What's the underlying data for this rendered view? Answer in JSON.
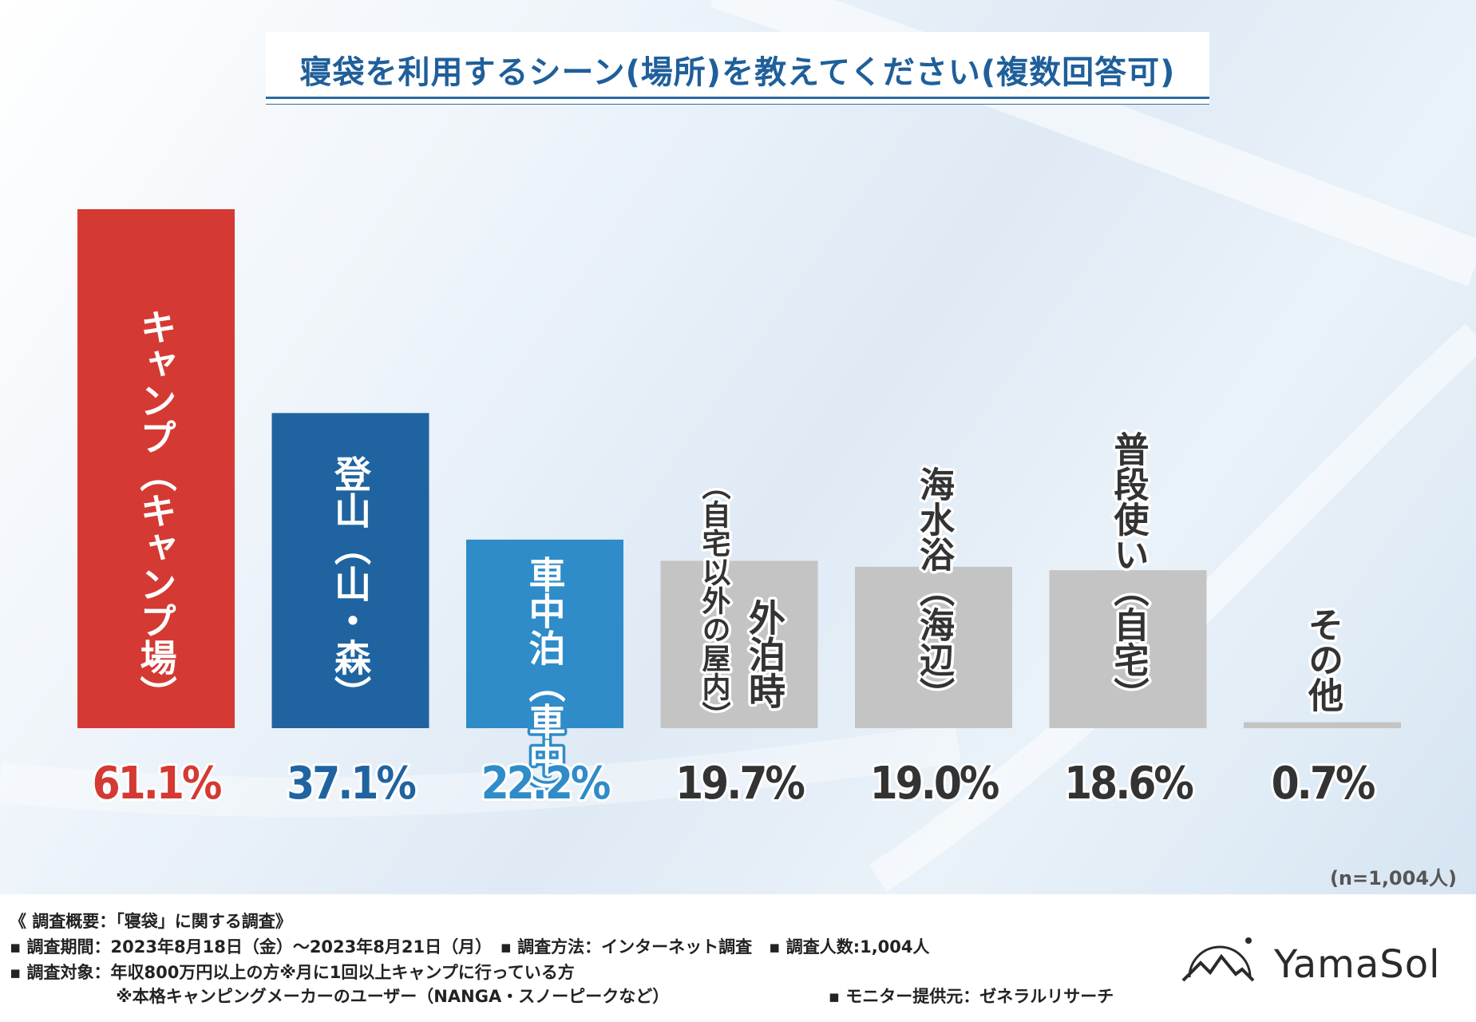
{
  "title": "寝袋を利用するシーン(場所)を教えてください(複数回答可)",
  "chart_data": {
    "type": "bar",
    "title": "寝袋を利用するシーン(場所)を教えてください(複数回答可)",
    "categories": [
      {
        "main": "キャンプ",
        "sub": "キャンプ場"
      },
      {
        "main": "登山",
        "sub": "山・森"
      },
      {
        "main": "車中泊",
        "sub": "車中"
      },
      {
        "main": "外泊時",
        "sub": "自宅以外の屋内"
      },
      {
        "main": "海水浴",
        "sub": "海辺"
      },
      {
        "main": "普段使い",
        "sub": "自宅"
      },
      {
        "main": "その他",
        "sub": ""
      }
    ],
    "values": [
      61.1,
      37.1,
      22.2,
      19.7,
      19.0,
      18.6,
      0.7
    ],
    "value_labels": [
      "61.1%",
      "37.1%",
      "22.2%",
      "19.7%",
      "19.0%",
      "18.6%",
      "0.7%"
    ],
    "colors": [
      "#d43a33",
      "#1f64a0",
      "#2f8cc9",
      "#c4c4c4",
      "#c4c4c4",
      "#c4c4c4",
      "#c4c4c4"
    ],
    "label_colors": [
      "#d43a33",
      "#1f64a0",
      "#2f8cc9",
      "#333333",
      "#333333",
      "#333333",
      "#333333"
    ],
    "ylim": [
      0,
      61.1
    ],
    "grid": false,
    "n_note": "(n=1,004人)"
  },
  "footer": {
    "line1": "《 調査概要：「寝袋」に関する調査》",
    "line2": "▪ 調査期間：2023年8月18日（金）～2023年8月21日（月）　▪ 調査方法：インターネット調査　▪ 調査人数:1,004人",
    "line3": "▪ 調査対象：年収800万円以上の方※月に1回以上キャンプに行っている方",
    "line4": "　　　　　　 ※本格キャンピングメーカーのユーザー（NANGA・スノーピークなど）　　　　　　　　　　▪ モニター提供元：ゼネラルリサーチ"
  },
  "logo": {
    "text": "YamaSol"
  }
}
